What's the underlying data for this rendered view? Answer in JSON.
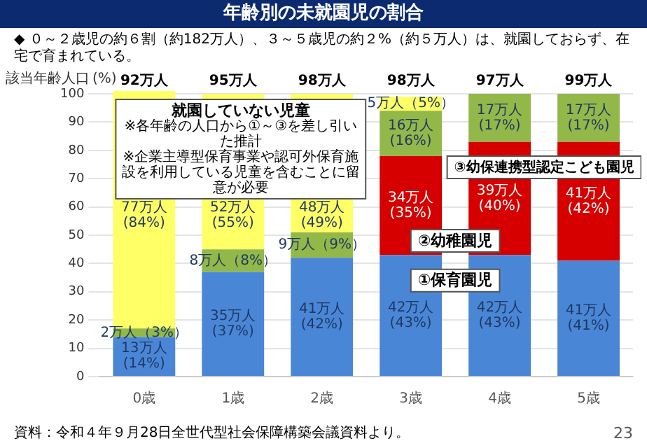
{
  "chart_data": {
    "type": "bar",
    "title": "年齢別の未就園児の割合",
    "subtitle": "◆ ０～２歳児の約６割（約182万人）、３～５歳児の約２%（約５万人）は、就園しておらず、在宅で育まれている。",
    "ylabel": "(%)",
    "categories": [
      "0歳",
      "1歳",
      "2歳",
      "3歳",
      "4歳",
      "5歳"
    ],
    "stacked": true,
    "ylim": [
      0,
      101
    ],
    "yticks": [
      0,
      10,
      20,
      30,
      40,
      50,
      60,
      70,
      80,
      90,
      100
    ],
    "grid": "y",
    "legend": false,
    "series": [
      {
        "name": "①保育園児",
        "color": "#4a86d6",
        "values": [
          14,
          37,
          42,
          43,
          43,
          41
        ],
        "value_labels": [
          "13万人\n(14%)",
          "35万人\n(37%)",
          "41万人\n(42%)",
          "42万人\n(43%)",
          "42万人\n(43%)",
          "41万人\n(41%)"
        ]
      },
      {
        "name": "②幼稚園児",
        "color": "#d60000",
        "values": [
          0,
          0,
          0,
          35,
          40,
          42
        ],
        "value_labels": [
          null,
          null,
          null,
          "34万人\n(35%)",
          "39万人\n(40%)",
          "41万人\n(42%)"
        ]
      },
      {
        "name": "③幼保連携型認定こども園児",
        "color": "#92b84a",
        "values": [
          3,
          8,
          9,
          16,
          17,
          17
        ],
        "value_labels": [
          "2万人（3%）",
          "8万人（8%）",
          "9万人（9%）",
          "16万人\n(16%)",
          "17万人\n(17%)",
          "17万人\n(17%)"
        ]
      },
      {
        "name": "就園していない児童",
        "color": "#ffff66",
        "values": [
          84,
          55,
          49,
          5,
          0,
          0
        ],
        "value_labels": [
          "77万人\n(84%)",
          "52万人\n(55%)",
          "48万人\n(49%)",
          "5万人（5%）",
          null,
          null
        ]
      }
    ],
    "annotations": [
      "該当年齢人口",
      "※各年齢の人口から①～③を差し引いた推計",
      "※企業主導型保育事業や認可外保育施設を利用している児童を含むことに留意が必要",
      "資料：令和４年９月28日全世代型社会保障構築会議資料より。",
      "23",
      {
        "text": "92万人",
        "x": "0歳",
        "y": 100
      },
      {
        "text": "95万人",
        "x": "1歳",
        "y": 100
      },
      {
        "text": "98万人",
        "x": "2歳",
        "y": 100
      },
      {
        "text": "98万人",
        "x": "3歳",
        "y": 100
      },
      {
        "text": "97万人",
        "x": "4歳",
        "y": 100
      },
      {
        "text": "99万人",
        "x": "5歳",
        "y": 100
      }
    ]
  }
}
